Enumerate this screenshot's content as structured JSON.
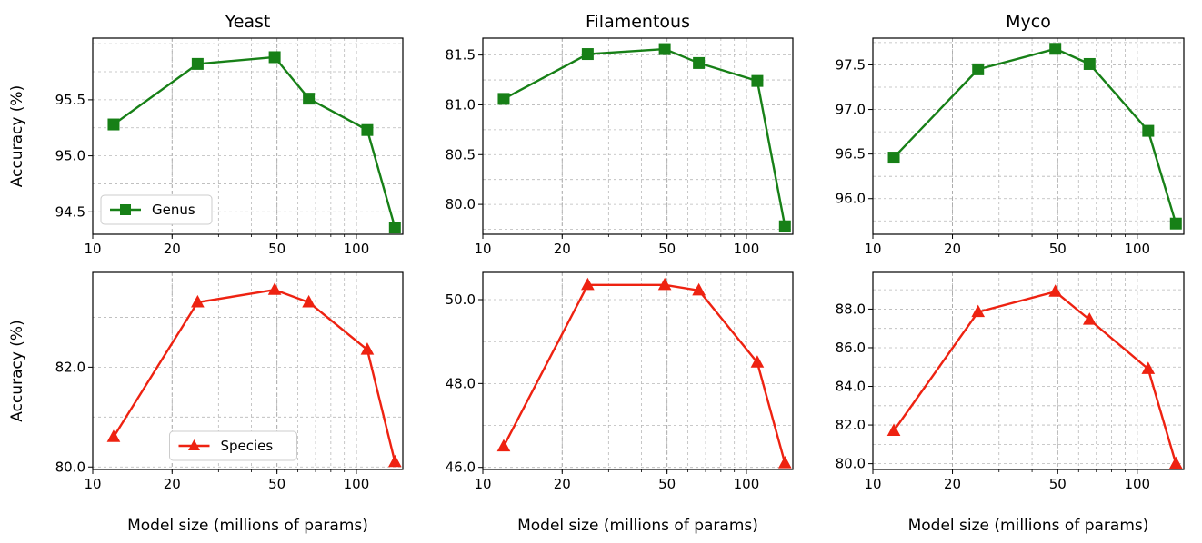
{
  "chart_data": [
    {
      "type": "line",
      "panel": "yeast-genus",
      "title": "Yeast",
      "xlabel": "",
      "ylabel": "Accuracy (%)",
      "xscale": "log",
      "xlim": [
        10,
        150
      ],
      "ylim": [
        94.3,
        96.05
      ],
      "x_ticks": [
        10,
        20,
        50,
        100
      ],
      "y_ticks": [
        94.5,
        95.0,
        95.5
      ],
      "series": [
        {
          "name": "Genus",
          "color": "#178017",
          "marker": "square",
          "x": [
            12,
            25,
            49,
            66,
            110,
            140
          ],
          "y": [
            95.28,
            95.82,
            95.88,
            95.51,
            95.23,
            94.36
          ]
        }
      ],
      "legend": "lower-left",
      "grid": true
    },
    {
      "type": "line",
      "panel": "filamentous-genus",
      "title": "Filamentous",
      "xlabel": "",
      "ylabel": "",
      "xscale": "log",
      "xlim": [
        10,
        150
      ],
      "ylim": [
        79.7,
        81.67
      ],
      "x_ticks": [
        10,
        20,
        50,
        100
      ],
      "y_ticks": [
        80.0,
        80.5,
        81.0,
        81.5
      ],
      "series": [
        {
          "name": "",
          "color": "#178017",
          "marker": "square",
          "x": [
            12,
            25,
            49,
            66,
            110,
            140
          ],
          "y": [
            81.06,
            81.51,
            81.56,
            81.42,
            81.24,
            79.78
          ]
        }
      ],
      "legend": "none",
      "grid": true
    },
    {
      "type": "line",
      "panel": "myco-genus",
      "title": "Myco",
      "xlabel": "",
      "ylabel": "",
      "xscale": "log",
      "xlim": [
        10,
        150
      ],
      "ylim": [
        95.6,
        97.8
      ],
      "x_ticks": [
        10,
        20,
        50,
        100
      ],
      "y_ticks": [
        96.0,
        96.5,
        97.0,
        97.5
      ],
      "series": [
        {
          "name": "",
          "color": "#178017",
          "marker": "square",
          "x": [
            12,
            25,
            49,
            66,
            110,
            140
          ],
          "y": [
            96.46,
            97.45,
            97.68,
            97.51,
            96.76,
            95.72
          ]
        }
      ],
      "legend": "none",
      "grid": true
    },
    {
      "type": "line",
      "panel": "yeast-species",
      "title": "",
      "xlabel": "Model size (millions of params)",
      "ylabel": "Accuracy (%)",
      "xscale": "log",
      "xlim": [
        10,
        150
      ],
      "ylim": [
        79.95,
        83.9
      ],
      "x_ticks": [
        10,
        20,
        50,
        100
      ],
      "y_ticks": [
        80.0,
        82.0
      ],
      "series": [
        {
          "name": "Species",
          "color": "#ee2211",
          "marker": "triangle",
          "x": [
            12,
            25,
            49,
            66,
            110,
            140
          ],
          "y": [
            80.6,
            83.3,
            83.55,
            83.3,
            82.35,
            80.1
          ]
        }
      ],
      "legend": "lower-center",
      "grid": true
    },
    {
      "type": "line",
      "panel": "filamentous-species",
      "title": "",
      "xlabel": "Model size (millions of params)",
      "ylabel": "",
      "xscale": "log",
      "xlim": [
        10,
        150
      ],
      "ylim": [
        45.95,
        50.65
      ],
      "x_ticks": [
        10,
        20,
        50,
        100
      ],
      "y_ticks": [
        46.0,
        48.0,
        50.0
      ],
      "series": [
        {
          "name": "",
          "color": "#ee2211",
          "marker": "triangle",
          "x": [
            12,
            25,
            49,
            66,
            110,
            140
          ],
          "y": [
            46.5,
            50.35,
            50.35,
            50.22,
            48.5,
            46.1
          ]
        }
      ],
      "legend": "none",
      "grid": true
    },
    {
      "type": "line",
      "panel": "myco-species",
      "title": "",
      "xlabel": "Model size (millions of params)",
      "ylabel": "",
      "xscale": "log",
      "xlim": [
        10,
        150
      ],
      "ylim": [
        79.7,
        89.9
      ],
      "x_ticks": [
        10,
        20,
        50,
        100
      ],
      "y_ticks": [
        80.0,
        82.0,
        84.0,
        86.0,
        88.0
      ],
      "series": [
        {
          "name": "",
          "color": "#ee2211",
          "marker": "triangle",
          "x": [
            12,
            25,
            49,
            66,
            110,
            140
          ],
          "y": [
            81.7,
            87.85,
            88.9,
            87.45,
            84.9,
            80.0
          ]
        }
      ],
      "legend": "none",
      "grid": true
    }
  ]
}
